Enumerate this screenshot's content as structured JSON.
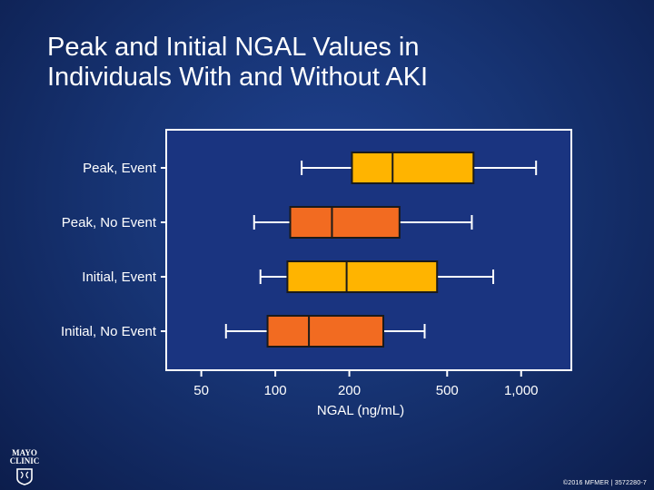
{
  "title": {
    "line1": "Peak and Initial NGAL Values in",
    "line2": "Individuals With and Without AKI"
  },
  "logo": {
    "icon": "mayo-clinic-shield-icon",
    "line1": "MAYO",
    "line2": "CLINIC"
  },
  "copyright": "©2016 MFMER | 3572280-7",
  "colors": {
    "plot_bg": "#1a3480",
    "box_event": "#ffb400",
    "box_no_event": "#f26b21",
    "line": "#1a1a1a",
    "whisker": "#ffffff"
  },
  "chart_data": {
    "type": "boxplot",
    "xlabel": "NGAL (ng/mL)",
    "ylabel": "",
    "x_scale": "log",
    "xlim": [
      36,
      1600
    ],
    "xticks": [
      50,
      100,
      200,
      500,
      1000
    ],
    "xtick_labels": [
      "50",
      "100",
      "200",
      "500",
      "1,000"
    ],
    "categories": [
      "Peak, Event",
      "Peak, No Event",
      "Initial, Event",
      "Initial, No Event"
    ],
    "series": [
      {
        "category": "Peak, Event",
        "whisker_low": 128,
        "q1": 205,
        "median": 300,
        "q3": 640,
        "whisker_high": 1150,
        "color": "#ffb400"
      },
      {
        "category": "Peak, No Event",
        "whisker_low": 82,
        "q1": 115,
        "median": 170,
        "q3": 320,
        "whisker_high": 630,
        "color": "#f26b21"
      },
      {
        "category": "Initial, Event",
        "whisker_low": 87,
        "q1": 112,
        "median": 195,
        "q3": 455,
        "whisker_high": 770,
        "color": "#ffb400"
      },
      {
        "category": "Initial, No Event",
        "whisker_low": 63,
        "q1": 93,
        "median": 137,
        "q3": 275,
        "whisker_high": 405,
        "color": "#f26b21"
      }
    ],
    "grid": false,
    "legend": "none"
  }
}
